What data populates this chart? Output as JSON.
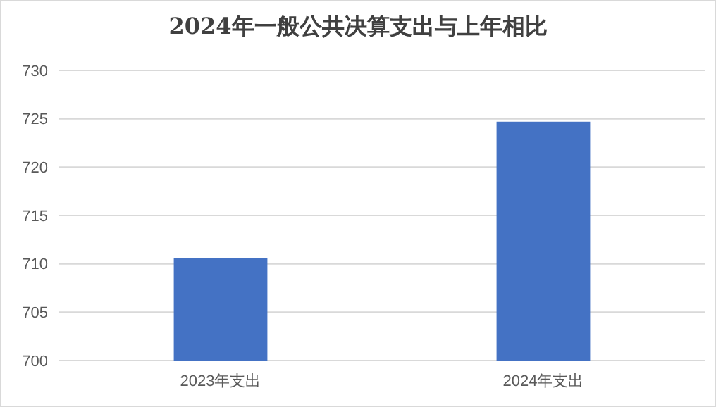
{
  "chart_data": {
    "type": "bar",
    "title": "2024年一般公共决算支出与上年相比",
    "categories": [
      "2023年支出",
      "2024年支出"
    ],
    "values": [
      710.6,
      724.7
    ],
    "color": "#4472c4",
    "ylim": [
      700,
      730
    ],
    "yticks": [
      700,
      705,
      710,
      715,
      720,
      725,
      730
    ],
    "grid": "y"
  }
}
